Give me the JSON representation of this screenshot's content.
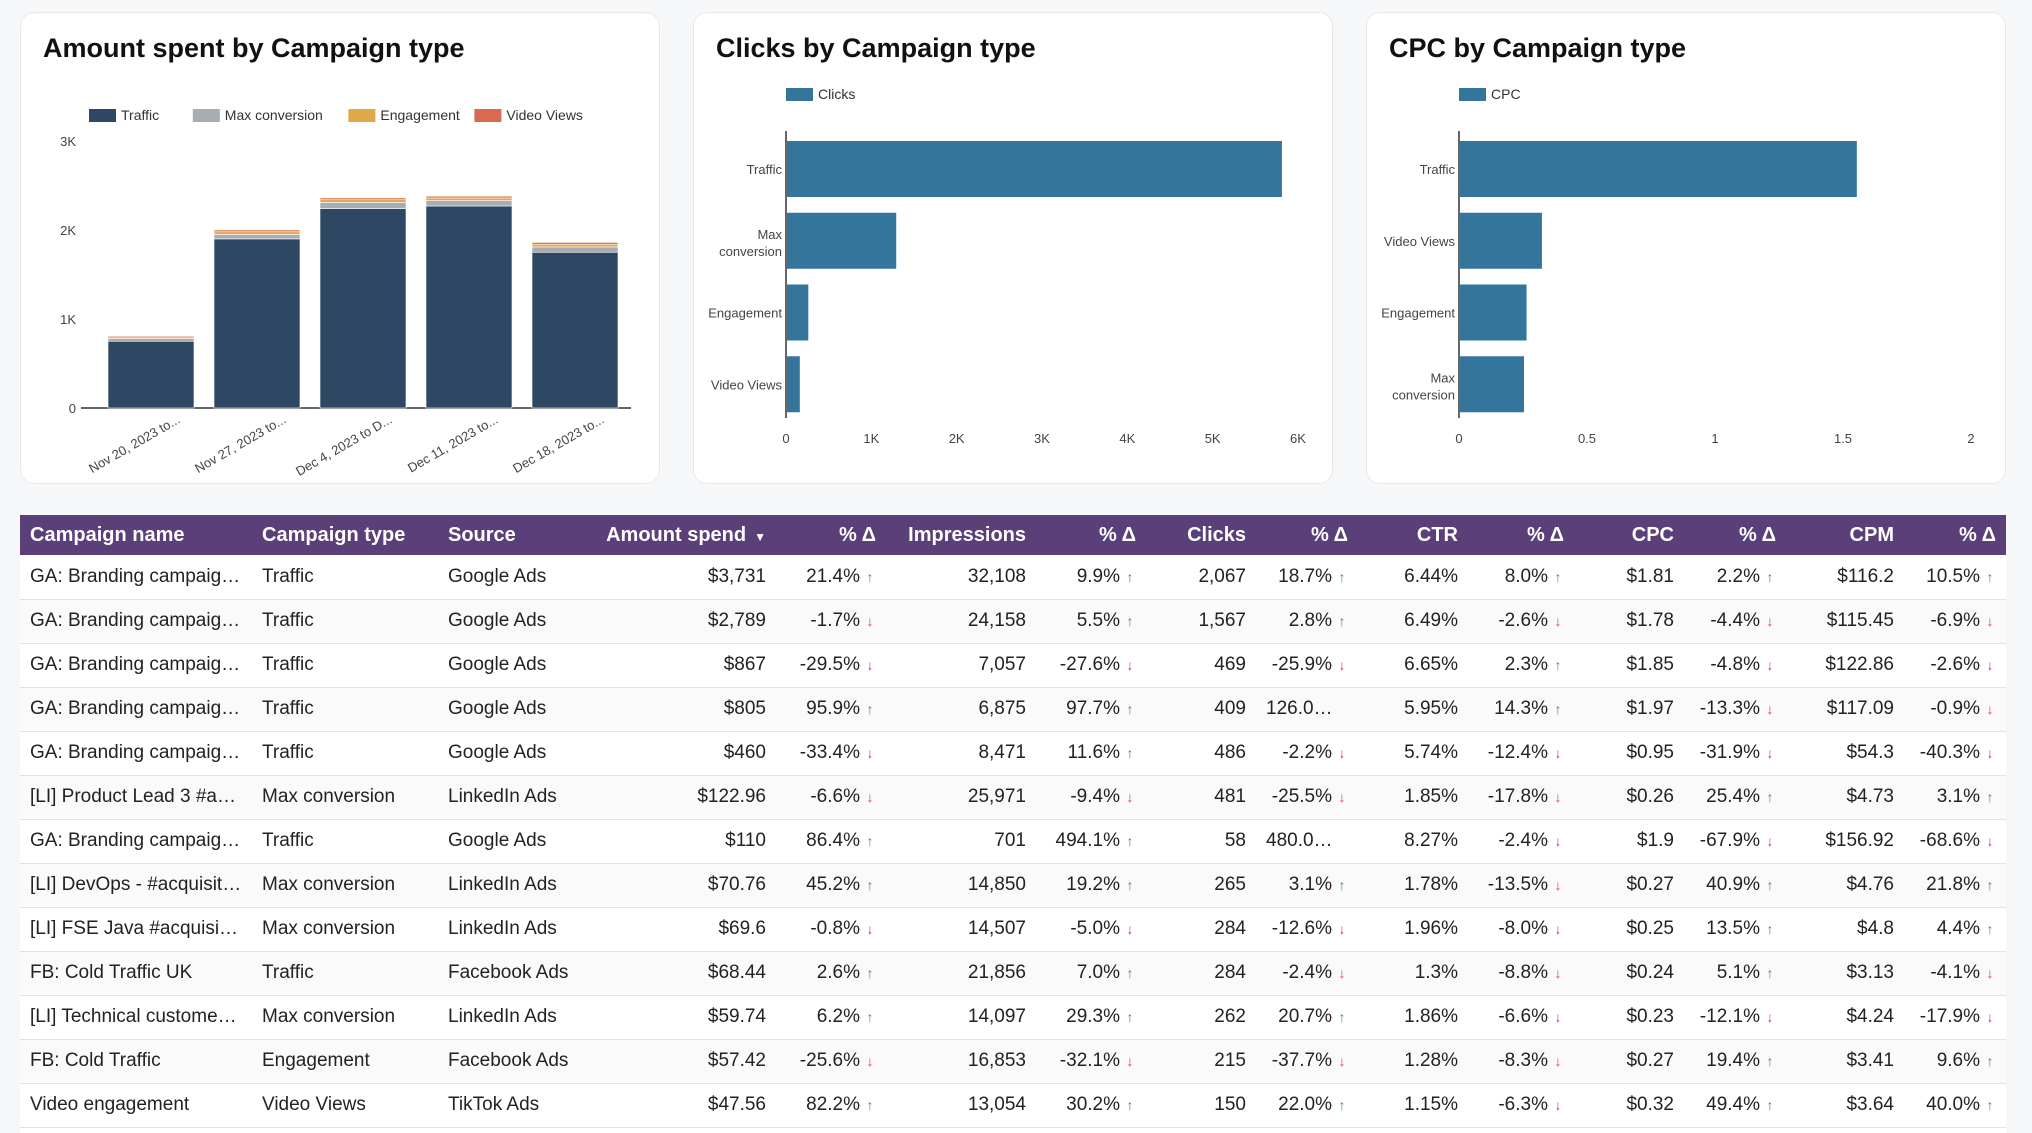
{
  "colors": {
    "header_bg": "#5a3f78",
    "traffic": "#2e4763",
    "max_conversion": "#a8adb4",
    "engagement": "#e0a84a",
    "video_views": "#d96a4f",
    "bar_blue": "#33759b",
    "up": "#2f9a4a",
    "down": "#d64545"
  },
  "chart_data": [
    {
      "type": "bar",
      "stacked": true,
      "title": "Amount spent by Campaign type",
      "categories": [
        "Nov 20, 2023 to...",
        "Nov 27, 2023 to...",
        "Dec 4, 2023 to D...",
        "Dec 11, 2023 to...",
        "Dec 18, 2023 to..."
      ],
      "series": [
        {
          "name": "Traffic",
          "values": [
            750,
            1900,
            2240,
            2270,
            1750
          ]
        },
        {
          "name": "Max conversion",
          "values": [
            30,
            50,
            70,
            60,
            60
          ]
        },
        {
          "name": "Engagement",
          "values": [
            20,
            30,
            30,
            30,
            30
          ]
        },
        {
          "name": "Video Views",
          "values": [
            10,
            20,
            20,
            20,
            20
          ]
        }
      ],
      "yticks": [
        "0",
        "1K",
        "2K",
        "3K"
      ],
      "ylim": [
        0,
        3000
      ],
      "legend": "top"
    },
    {
      "type": "bar",
      "orientation": "horizontal",
      "title": "Clicks by Campaign type",
      "series_name": "Clicks",
      "categories": [
        "Traffic",
        "Max conversion",
        "Engagement",
        "Video Views"
      ],
      "values": [
        5800,
        1280,
        250,
        150
      ],
      "xticks": [
        "0",
        "1K",
        "2K",
        "3K",
        "4K",
        "5K",
        "6K"
      ],
      "xlim": [
        0,
        6000
      ]
    },
    {
      "type": "bar",
      "orientation": "horizontal",
      "title": "CPC by Campaign type",
      "series_name": "CPC",
      "categories": [
        "Traffic",
        "Video Views",
        "Engagement",
        "Max conversion"
      ],
      "values": [
        1.55,
        0.32,
        0.26,
        0.25
      ],
      "xticks": [
        "0",
        "0.5",
        "1",
        "1.5",
        "2"
      ],
      "xlim": [
        0,
        2
      ]
    }
  ],
  "table": {
    "columns": [
      "Campaign name",
      "Campaign type",
      "Source",
      "Amount spend",
      "% Δ",
      "Impressions",
      "% Δ",
      "Clicks",
      "% Δ",
      "CTR",
      "% Δ",
      "CPC",
      "% Δ",
      "CPM",
      "% Δ"
    ],
    "sort_icon": "▼",
    "rows": [
      [
        "GA: Branding campaign…",
        "Traffic",
        "Google Ads",
        "$3,731",
        "21.4%",
        "32,108",
        "9.9%",
        "2,067",
        "18.7%",
        "6.44%",
        "8.0%",
        "$1.81",
        "2.2%",
        "$116.2",
        "10.5%"
      ],
      [
        "GA: Branding campaign…",
        "Traffic",
        "Google Ads",
        "$2,789",
        "-1.7%",
        "24,158",
        "5.5%",
        "1,567",
        "2.8%",
        "6.49%",
        "-2.6%",
        "$1.78",
        "-4.4%",
        "$115.45",
        "-6.9%"
      ],
      [
        "GA: Branding campaign…",
        "Traffic",
        "Google Ads",
        "$867",
        "-29.5%",
        "7,057",
        "-27.6%",
        "469",
        "-25.9%",
        "6.65%",
        "2.3%",
        "$1.85",
        "-4.8%",
        "$122.86",
        "-2.6%"
      ],
      [
        "GA: Branding campaign…",
        "Traffic",
        "Google Ads",
        "$805",
        "95.9%",
        "6,875",
        "97.7%",
        "409",
        "126.0%…",
        "5.95%",
        "14.3%",
        "$1.97",
        "-13.3%",
        "$117.09",
        "-0.9%"
      ],
      [
        "GA: Branding campaign…",
        "Traffic",
        "Google Ads",
        "$460",
        "-33.4%",
        "8,471",
        "11.6%",
        "486",
        "-2.2%",
        "5.74%",
        "-12.4%",
        "$0.95",
        "-31.9%",
        "$54.3",
        "-40.3%"
      ],
      [
        "[LI] Product Lead 3 #ac…",
        "Max conversion",
        "LinkedIn Ads",
        "$122.96",
        "-6.6%",
        "25,971",
        "-9.4%",
        "481",
        "-25.5%",
        "1.85%",
        "-17.8%",
        "$0.26",
        "25.4%",
        "$4.73",
        "3.1%"
      ],
      [
        "GA: Branding campaign…",
        "Traffic",
        "Google Ads",
        "$110",
        "86.4%",
        "701",
        "494.1%",
        "58",
        "480.0%…",
        "8.27%",
        "-2.4%",
        "$1.9",
        "-67.9%",
        "$156.92",
        "-68.6%"
      ],
      [
        "[LI] DevOps - #acquisition",
        "Max conversion",
        "LinkedIn Ads",
        "$70.76",
        "45.2%",
        "14,850",
        "19.2%",
        "265",
        "3.1%",
        "1.78%",
        "-13.5%",
        "$0.27",
        "40.9%",
        "$4.76",
        "21.8%"
      ],
      [
        "[LI] FSE Java #acquisiti…",
        "Max conversion",
        "LinkedIn Ads",
        "$69.6",
        "-0.8%",
        "14,507",
        "-5.0%",
        "284",
        "-12.6%",
        "1.96%",
        "-8.0%",
        "$0.25",
        "13.5%",
        "$4.8",
        "4.4%"
      ],
      [
        "FB: Cold Traffic UK",
        "Traffic",
        "Facebook Ads",
        "$68.44",
        "2.6%",
        "21,856",
        "7.0%",
        "284",
        "-2.4%",
        "1.3%",
        "-8.8%",
        "$0.24",
        "5.1%",
        "$3.13",
        "-4.1%"
      ],
      [
        "[LI] Technical customer …",
        "Max conversion",
        "LinkedIn Ads",
        "$59.74",
        "6.2%",
        "14,097",
        "29.3%",
        "262",
        "20.7%",
        "1.86%",
        "-6.6%",
        "$0.23",
        "-12.1%",
        "$4.24",
        "-17.9%"
      ],
      [
        "FB: Cold Traffic",
        "Engagement",
        "Facebook Ads",
        "$57.42",
        "-25.6%",
        "16,853",
        "-32.1%",
        "215",
        "-37.7%",
        "1.28%",
        "-8.3%",
        "$0.27",
        "19.4%",
        "$3.41",
        "9.6%"
      ],
      [
        "Video engagement",
        "Video Views",
        "TikTok Ads",
        "$47.56",
        "82.2%",
        "13,054",
        "30.2%",
        "150",
        "22.0%",
        "1.15%",
        "-6.3%",
        "$0.32",
        "49.4%",
        "$3.64",
        "40.0%"
      ]
    ]
  }
}
